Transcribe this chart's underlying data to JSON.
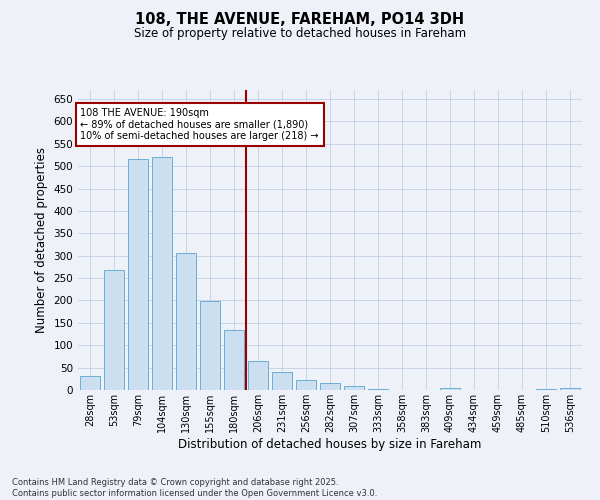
{
  "title": "108, THE AVENUE, FAREHAM, PO14 3DH",
  "subtitle": "Size of property relative to detached houses in Fareham",
  "xlabel": "Distribution of detached houses by size in Fareham",
  "ylabel": "Number of detached properties",
  "categories": [
    "28sqm",
    "53sqm",
    "79sqm",
    "104sqm",
    "130sqm",
    "155sqm",
    "180sqm",
    "206sqm",
    "231sqm",
    "256sqm",
    "282sqm",
    "307sqm",
    "333sqm",
    "358sqm",
    "383sqm",
    "409sqm",
    "434sqm",
    "459sqm",
    "485sqm",
    "510sqm",
    "536sqm"
  ],
  "values": [
    32,
    267,
    517,
    520,
    305,
    198,
    133,
    65,
    40,
    22,
    15,
    9,
    3,
    0,
    0,
    5,
    0,
    0,
    0,
    3,
    5
  ],
  "bar_color": "#ccdff0",
  "bar_edge_color": "#6aaed6",
  "vline_color": "#990000",
  "vline_index": 6.5,
  "annotation_line1": "108 THE AVENUE: 190sqm",
  "annotation_line2": "← 89% of detached houses are smaller (1,890)",
  "annotation_line3": "10% of semi-detached houses are larger (218) →",
  "annotation_box_color": "#ffffff",
  "annotation_box_edge": "#990000",
  "ylim": [
    0,
    670
  ],
  "yticks": [
    0,
    50,
    100,
    150,
    200,
    250,
    300,
    350,
    400,
    450,
    500,
    550,
    600,
    650
  ],
  "grid_color": "#c8d4e8",
  "background_color": "#eef2f8",
  "footer_line1": "Contains HM Land Registry data © Crown copyright and database right 2025.",
  "footer_line2": "Contains public sector information licensed under the Open Government Licence v3.0."
}
